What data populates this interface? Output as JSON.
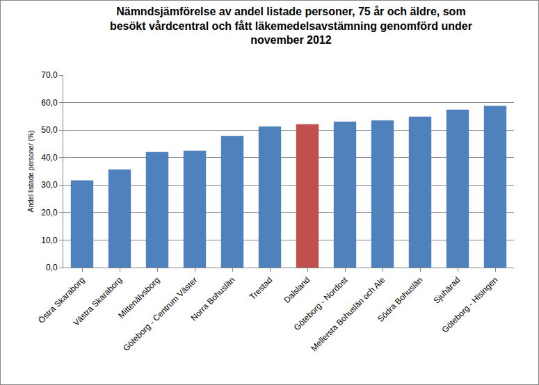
{
  "chart_data": {
    "type": "bar",
    "title": "Nämndsjämförelse av andel listade personer, 75 år och äldre, som besökt vårdcentral och fått läkemedelsavstämning genomförd under november 2012",
    "y_label": "Andel listade personer (%)",
    "categories": [
      "Östra Skaraborg",
      "Västra Skaraborg",
      "Mittenälvsborg",
      "Göteborg - Centrum Väster",
      "Norra Bohuslän",
      "Trestad",
      "Dalsland",
      "Göteborg - Nordost",
      "Mellersta Bohuslän och Ale",
      "Södra Bohuslän",
      "Sjuhärad",
      "Göteborg - Hisingen"
    ],
    "values": [
      31.7,
      35.7,
      42.0,
      42.5,
      47.8,
      51.3,
      52.1,
      53.1,
      53.5,
      54.9,
      57.4,
      58.8
    ],
    "colors": [
      "#4f81bd",
      "#4f81bd",
      "#4f81bd",
      "#4f81bd",
      "#4f81bd",
      "#4f81bd",
      "#c0504d",
      "#4f81bd",
      "#4f81bd",
      "#4f81bd",
      "#4f81bd",
      "#4f81bd"
    ],
    "ylim": [
      0,
      70
    ],
    "yticks": [
      {
        "value": 0,
        "label": "0,0"
      },
      {
        "value": 10,
        "label": "10,0"
      },
      {
        "value": 20,
        "label": "20,0"
      },
      {
        "value": 30,
        "label": "30,0"
      },
      {
        "value": 40,
        "label": "40,0"
      },
      {
        "value": 50,
        "label": "50,0"
      },
      {
        "value": 60,
        "label": "60,0"
      },
      {
        "value": 70,
        "label": "70,0"
      }
    ],
    "grid": true
  }
}
